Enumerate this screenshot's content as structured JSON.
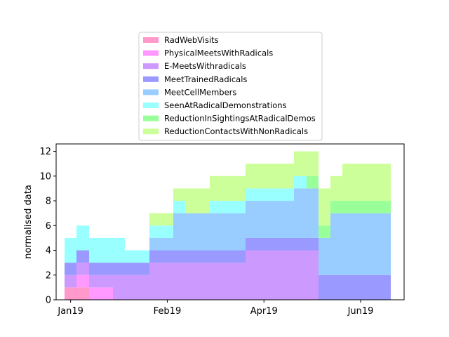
{
  "chart_data": {
    "type": "area",
    "style": "stacked-step-histogram",
    "ylabel": "normalised data",
    "xlabel": "",
    "ylim": [
      0,
      12.6
    ],
    "yticks": [
      0,
      2,
      4,
      6,
      8,
      10,
      12
    ],
    "xticks": [
      {
        "label": "Jan19",
        "week": 0
      },
      {
        "label": "Feb19",
        "week": 8
      },
      {
        "label": "Apr19",
        "week": 16
      },
      {
        "label": "Jun19",
        "week": 24
      }
    ],
    "xlim": [
      -1.2,
      27.6
    ],
    "weeks": [
      0,
      1,
      2,
      3,
      4,
      5,
      6,
      7,
      8,
      9,
      10,
      11,
      12,
      13,
      14,
      15,
      16,
      17,
      18,
      19,
      20,
      21,
      22,
      23,
      24,
      25,
      26
    ],
    "legend_position": "upper-center",
    "series": [
      {
        "name": "RadWebVisits",
        "color": "#ff99cc",
        "values": [
          1,
          1,
          0,
          0,
          0,
          0,
          0,
          0,
          0,
          0,
          0,
          0,
          0,
          0,
          0,
          0,
          0,
          0,
          0,
          0,
          0,
          0,
          0,
          0,
          0,
          0,
          0
        ]
      },
      {
        "name": "PhysicalMeetsWithRadicals",
        "color": "#ff99ff",
        "values": [
          0,
          1,
          1,
          1,
          0,
          0,
          0,
          0,
          0,
          0,
          0,
          0,
          0,
          0,
          0,
          0,
          0,
          0,
          0,
          0,
          0,
          0,
          0,
          0,
          0,
          0,
          0
        ]
      },
      {
        "name": "E-MeetsWithradicals",
        "color": "#cc99ff",
        "values": [
          1,
          1,
          1,
          1,
          2,
          2,
          2,
          3,
          3,
          3,
          3,
          3,
          3,
          3,
          3,
          4,
          4,
          4,
          4,
          4,
          4,
          0,
          0,
          0,
          0,
          0,
          0
        ]
      },
      {
        "name": "MeetTrainedRadicals",
        "color": "#9999ff",
        "values": [
          1,
          1,
          1,
          1,
          1,
          1,
          1,
          1,
          1,
          1,
          1,
          1,
          1,
          1,
          1,
          1,
          1,
          1,
          1,
          1,
          1,
          2,
          2,
          2,
          2,
          2,
          2
        ]
      },
      {
        "name": "MeetCellMembers",
        "color": "#99ccff",
        "values": [
          0,
          0,
          0,
          0,
          0,
          0,
          0,
          1,
          1,
          3,
          3,
          3,
          3,
          3,
          3,
          3,
          3,
          3,
          3,
          4,
          4,
          3,
          5,
          5,
          5,
          5,
          5
        ]
      },
      {
        "name": "SeenAtRadicalDemonstrations",
        "color": "#99ffff",
        "values": [
          2,
          2,
          2,
          2,
          2,
          1,
          1,
          1,
          1,
          1,
          0,
          0,
          1,
          1,
          1,
          1,
          1,
          1,
          1,
          1,
          0,
          0,
          0,
          0,
          0,
          0,
          0
        ]
      },
      {
        "name": "ReductionInSightingsAtRadicalDemos",
        "color": "#99ff99",
        "values": [
          0,
          0,
          0,
          0,
          0,
          0,
          0,
          0,
          0,
          0,
          0,
          0,
          0,
          0,
          0,
          0,
          0,
          0,
          0,
          0,
          1,
          1,
          1,
          1,
          1,
          1,
          1
        ]
      },
      {
        "name": "ReductionContactsWithNonRadicals",
        "color": "#ccff99",
        "values": [
          0,
          0,
          0,
          0,
          0,
          0,
          0,
          1,
          1,
          1,
          2,
          2,
          2,
          2,
          2,
          2,
          2,
          2,
          2,
          2,
          2,
          3,
          2,
          3,
          3,
          3,
          3
        ]
      }
    ]
  }
}
